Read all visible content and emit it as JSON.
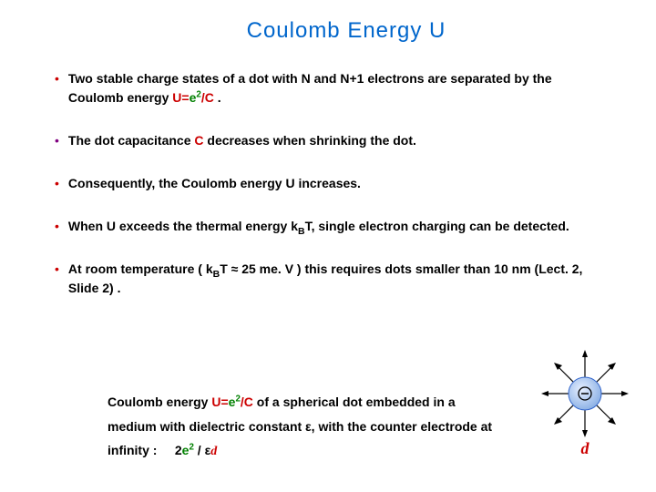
{
  "title": {
    "text": "Coulomb  Energy  U",
    "color": "#0066cc"
  },
  "bullets": [
    {
      "marker_color": "#cc0000",
      "html": "Two stable charge states of a dot with N and N+1 electrons are separated by the Coulomb energy <span class='formula-red'>U</span><span class='formula-red'>=</span><span class='formula-green'>e<span class='sup'>2</span></span><span class='formula-red'>/C</span> ."
    },
    {
      "marker_color": "#800080",
      "html": "The dot capacitance <span class='formula-red'>C</span> decreases when shrinking the dot."
    },
    {
      "marker_color": "#cc0000",
      "html": "Consequently, the Coulomb energy U increases."
    },
    {
      "marker_color": "#cc0000",
      "html": "When U exceeds the thermal energy k<span class='sub'>B</span>T, single electron charging can be detected."
    },
    {
      "marker_color": "#cc0000",
      "html": "At room temperature ( k<span class='sub'>B</span>T ≈ 25 me. V )  this requires dots smaller than 10 nm (Lect. 2, Slide 2) ."
    }
  ],
  "bottom": {
    "html": "Coulomb energy  <span class='formula-red'>U=</span><span class='formula-green'>e<span class='sup'>2</span></span><span class='formula-red'>/C</span>  of a spherical dot  embedded in a medium with dielectric constant &epsilon;,  with the counter electrode at infinity :&nbsp;&nbsp;&nbsp;&nbsp;&nbsp;2<span class='formula-green'>e<span class='sup'>2</span></span> / &epsilon;<span class='formula-red' style='font-family:serif;font-style:italic'>d</span>"
  },
  "diagram": {
    "sphere_fill": "#b3cfff",
    "sphere_stroke": "#3366cc",
    "arrow_color": "#000000",
    "minus_color": "#000000",
    "d_label": "d",
    "d_color": "#cc0000"
  }
}
